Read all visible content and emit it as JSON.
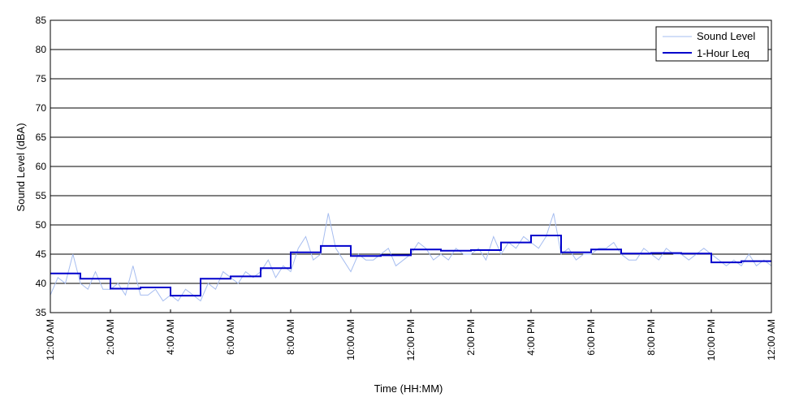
{
  "chart_data": {
    "type": "line",
    "title": "",
    "xlabel": "Time (HH:MM)",
    "ylabel": "Sound Level (dBA)",
    "ylim": [
      35,
      85
    ],
    "xlim_hours": [
      0,
      24
    ],
    "yticks": [
      35,
      40,
      45,
      50,
      55,
      60,
      65,
      70,
      75,
      80,
      85
    ],
    "xticks": [
      {
        "hour": 0,
        "label": "12:00 AM"
      },
      {
        "hour": 2,
        "label": "2:00 AM"
      },
      {
        "hour": 4,
        "label": "4:00 AM"
      },
      {
        "hour": 6,
        "label": "6:00 AM"
      },
      {
        "hour": 8,
        "label": "8:00 AM"
      },
      {
        "hour": 10,
        "label": "10:00 AM"
      },
      {
        "hour": 12,
        "label": "12:00 PM"
      },
      {
        "hour": 14,
        "label": "2:00 PM"
      },
      {
        "hour": 16,
        "label": "4:00 PM"
      },
      {
        "hour": 18,
        "label": "6:00 PM"
      },
      {
        "hour": 20,
        "label": "8:00 PM"
      },
      {
        "hour": 22,
        "label": "10:00 PM"
      },
      {
        "hour": 24,
        "label": "12:00 AM"
      }
    ],
    "grid": "horizontal",
    "legend_position": "top-right",
    "series": [
      {
        "name": "Sound Level",
        "color": "#a6bdf0",
        "style": "thin-line",
        "x_hours": [
          0.0,
          0.25,
          0.5,
          0.75,
          1.0,
          1.25,
          1.5,
          1.75,
          2.0,
          2.25,
          2.5,
          2.75,
          3.0,
          3.25,
          3.5,
          3.75,
          4.0,
          4.25,
          4.5,
          4.75,
          5.0,
          5.25,
          5.5,
          5.75,
          6.0,
          6.25,
          6.5,
          6.75,
          7.0,
          7.25,
          7.5,
          7.75,
          8.0,
          8.25,
          8.5,
          8.75,
          9.0,
          9.25,
          9.5,
          9.75,
          10.0,
          10.25,
          10.5,
          10.75,
          11.0,
          11.25,
          11.5,
          11.75,
          12.0,
          12.25,
          12.5,
          12.75,
          13.0,
          13.25,
          13.5,
          13.75,
          14.0,
          14.25,
          14.5,
          14.75,
          15.0,
          15.25,
          15.5,
          15.75,
          16.0,
          16.25,
          16.5,
          16.75,
          17.0,
          17.25,
          17.5,
          17.75,
          18.0,
          18.25,
          18.5,
          18.75,
          19.0,
          19.25,
          19.5,
          19.75,
          20.0,
          20.25,
          20.5,
          20.75,
          21.0,
          21.25,
          21.5,
          21.75,
          22.0,
          22.25,
          22.5,
          22.75,
          23.0,
          23.25,
          23.5,
          23.75,
          24.0
        ],
        "values": [
          38,
          41,
          40,
          45,
          40,
          39,
          42,
          39,
          39,
          40,
          38,
          43,
          38,
          38,
          39,
          37,
          38,
          37,
          39,
          38,
          37,
          40,
          39,
          42,
          41,
          40,
          42,
          41,
          42,
          44,
          41,
          43,
          42,
          46,
          48,
          44,
          45,
          52,
          46,
          44,
          42,
          45,
          44,
          44,
          45,
          46,
          43,
          44,
          45,
          47,
          46,
          44,
          45,
          44,
          46,
          45,
          45,
          46,
          44,
          48,
          45,
          47,
          46,
          48,
          47,
          46,
          48,
          52,
          45,
          46,
          44,
          45,
          45,
          46,
          46,
          47,
          45,
          44,
          44,
          46,
          45,
          44,
          46,
          45,
          45,
          44,
          45,
          46,
          45,
          44,
          43,
          44,
          43,
          45,
          43,
          44,
          43
        ]
      },
      {
        "name": "1-Hour Leq",
        "color": "#0000cc",
        "style": "step",
        "hours": [
          0,
          1,
          2,
          3,
          4,
          5,
          6,
          7,
          8,
          9,
          10,
          11,
          12,
          13,
          14,
          15,
          16,
          17,
          18,
          19,
          20,
          21,
          22,
          23
        ],
        "values": [
          41.7,
          40.8,
          39.1,
          39.3,
          37.9,
          40.8,
          41.2,
          42.6,
          45.3,
          46.4,
          44.7,
          44.8,
          45.8,
          45.6,
          45.7,
          47.0,
          48.2,
          45.3,
          45.8,
          45.1,
          45.2,
          45.1,
          43.6,
          43.8
        ]
      }
    ]
  }
}
